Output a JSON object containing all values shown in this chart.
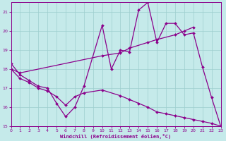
{
  "line1_x": [
    0,
    1,
    2,
    3,
    4,
    5,
    6,
    7,
    8,
    10,
    11,
    12,
    13,
    14,
    15,
    16,
    17,
    18,
    19,
    20,
    21,
    22,
    23
  ],
  "line1_y": [
    18.3,
    17.7,
    17.4,
    17.1,
    17.0,
    16.2,
    15.5,
    16.0,
    17.1,
    20.3,
    18.0,
    19.0,
    18.9,
    21.1,
    21.5,
    19.4,
    20.4,
    20.4,
    19.8,
    19.9,
    18.1,
    16.5,
    15.0
  ],
  "line2_x": [
    0,
    1,
    10,
    12,
    13,
    15,
    16,
    18,
    19,
    20
  ],
  "line2_y": [
    18.0,
    17.8,
    18.7,
    18.85,
    19.1,
    19.4,
    19.55,
    19.8,
    20.0,
    20.2
  ],
  "line3_x": [
    0,
    1,
    2,
    3,
    4,
    5,
    6,
    7,
    8,
    10,
    12,
    13,
    14,
    15,
    16,
    17,
    18,
    19,
    20,
    21,
    22,
    23
  ],
  "line3_y": [
    18.0,
    17.5,
    17.3,
    17.0,
    16.85,
    16.55,
    16.1,
    16.55,
    16.75,
    16.9,
    16.6,
    16.4,
    16.2,
    16.0,
    15.75,
    15.65,
    15.55,
    15.45,
    15.35,
    15.25,
    15.15,
    15.0
  ],
  "xlabel": "Windchill (Refroidissement éolien,°C)",
  "xlim_lo": 0,
  "xlim_hi": 23,
  "ylim_lo": 15,
  "ylim_hi": 21.5,
  "yticks": [
    15,
    16,
    17,
    18,
    19,
    20,
    21
  ],
  "xticks": [
    0,
    1,
    2,
    3,
    4,
    5,
    6,
    7,
    8,
    9,
    10,
    11,
    12,
    13,
    14,
    15,
    16,
    17,
    18,
    19,
    20,
    21,
    22,
    23
  ],
  "line_color": "#8b008b",
  "bg_color": "#c5eaea",
  "grid_color": "#9ecece",
  "markersize": 2.0,
  "linewidth": 0.9
}
